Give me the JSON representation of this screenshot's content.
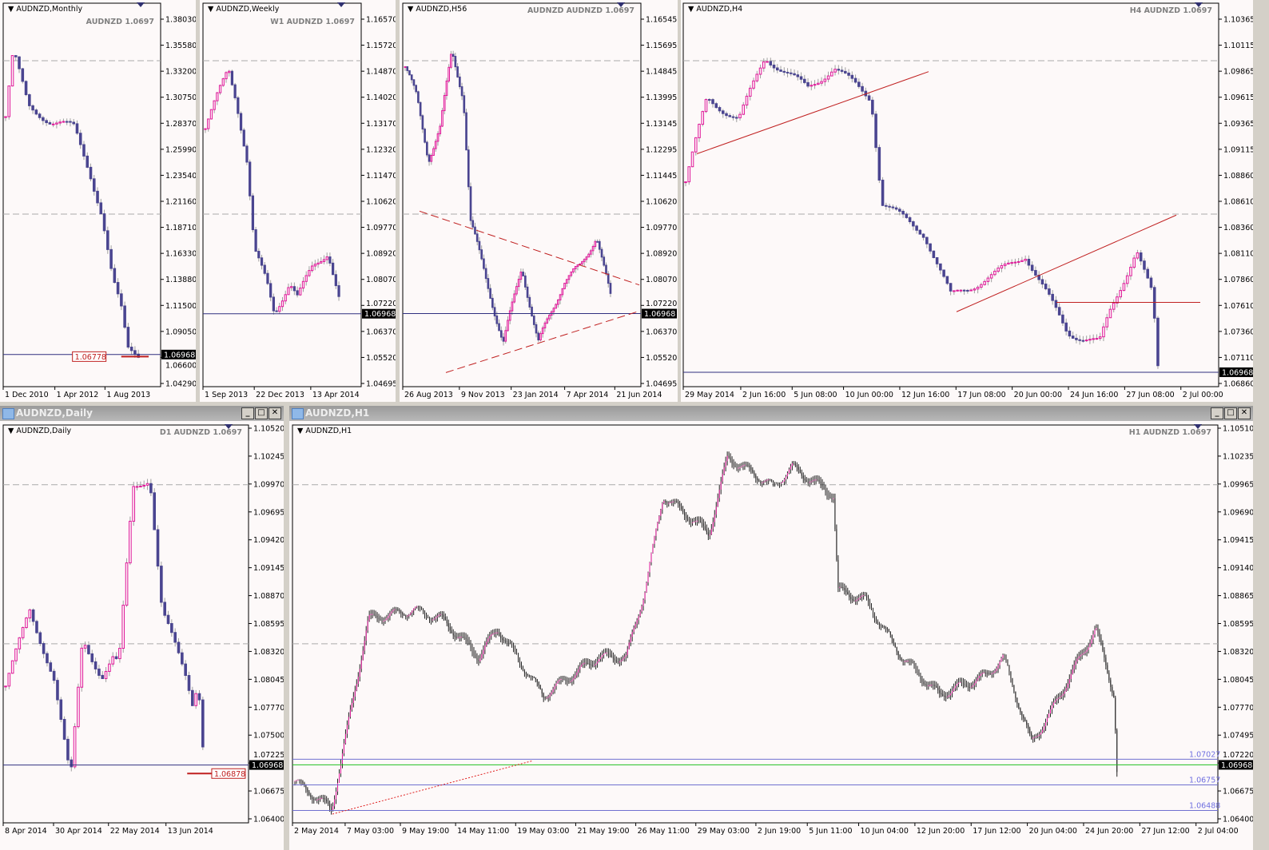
{
  "colors": {
    "bull": "#e0189a",
    "bear": "#4a4590",
    "wick": "#a0a0a0",
    "price_label_bg": "#000000",
    "support": "#c02020",
    "bg": "#fdf9f9"
  },
  "windows": [
    {
      "id": "monthly",
      "title": "AUDNZD,Monthly",
      "overlay": "AUDNZD 1.0697",
      "price": "1.06968",
      "ticks": [
        "1.38030",
        "1.35580",
        "1.33200",
        "1.30750",
        "1.28370",
        "1.25990",
        "1.23540",
        "1.21160",
        "1.18710",
        "1.16330",
        "1.13880",
        "1.11500",
        "1.09050",
        "1.06600",
        "1.04290"
      ],
      "times": [
        "1 Dec 2010",
        "1 Apr 2012",
        "1 Aug 2013"
      ],
      "marker_label": "1.06778"
    },
    {
      "id": "weekly",
      "title": "AUDNZD,Weekly",
      "overlay": "W1 AUDNZD 1.0697",
      "price": "1.06968",
      "ticks": [
        "1.16570",
        "1.15720",
        "1.14870",
        "1.14020",
        "1.13170",
        "1.12320",
        "1.11470",
        "1.10620",
        "1.09770",
        "1.08920",
        "1.08070",
        "1.07220",
        "1.06370",
        "1.05520",
        "1.04695"
      ],
      "times": [
        "1 Sep 2013",
        "22 Dec 2013",
        "13 Apr 2014"
      ]
    },
    {
      "id": "h56",
      "title": "AUDNZD,H56",
      "overlay": "AUDNZD AUDNZD 1.0697",
      "price": "1.06968",
      "ticks": [
        "1.16545",
        "1.15695",
        "1.14845",
        "1.13995",
        "1.13145",
        "1.12295",
        "1.11445",
        "1.10620",
        "1.09770",
        "1.08920",
        "1.08070",
        "1.07220",
        "1.06370",
        "1.05520",
        "1.04695"
      ],
      "times": [
        "26 Aug 2013",
        "9 Nov 2013",
        "23 Jan 2014",
        "7 Apr 2014",
        "21 Jun 2014"
      ]
    },
    {
      "id": "h4",
      "title": "AUDNZD,H4",
      "overlay": "H4 AUDNZD 1.0697",
      "price": "1.06968",
      "ticks": [
        "1.10365",
        "1.10115",
        "1.09865",
        "1.09615",
        "1.09365",
        "1.09115",
        "1.08860",
        "1.08610",
        "1.08360",
        "1.08110",
        "1.07860",
        "1.07610",
        "1.07360",
        "1.07110",
        "1.06860"
      ],
      "times": [
        "29 May 2014",
        "2 Jun 16:00",
        "5 Jun 08:00",
        "10 Jun 00:00",
        "12 Jun 16:00",
        "17 Jun 08:00",
        "20 Jun 00:00",
        "24 Jun 16:00",
        "27 Jun 08:00",
        "2 Jul 00:00"
      ]
    },
    {
      "id": "daily",
      "title": "AUDNZD,Daily",
      "window_title": "AUDNZD,Daily",
      "overlay": "D1 AUDNZD 1.0697",
      "price": "1.06968",
      "ticks": [
        "1.10520",
        "1.10245",
        "1.09970",
        "1.09695",
        "1.09420",
        "1.09145",
        "1.08870",
        "1.08595",
        "1.08320",
        "1.08045",
        "1.07770",
        "1.07500",
        "1.07225",
        "1.06675",
        "1.06400"
      ],
      "times": [
        "8 Apr 2014",
        "30 Apr 2014",
        "22 May 2014",
        "13 Jun 2014"
      ],
      "marker_label": "1.06878"
    },
    {
      "id": "h1",
      "title": "AUDNZD,H1",
      "window_title": "AUDNZD,H1",
      "overlay": "H1 AUDNZD 1.0697",
      "price": "1.06968",
      "ticks": [
        "1.10510",
        "1.10235",
        "1.09965",
        "1.09690",
        "1.09415",
        "1.09140",
        "1.08865",
        "1.08595",
        "1.08320",
        "1.08045",
        "1.07770",
        "1.07495",
        "1.07220",
        "1.06675",
        "1.06400"
      ],
      "times": [
        "2 May 2014",
        "7 May 03:00",
        "9 May 19:00",
        "14 May 11:00",
        "19 May 03:00",
        "21 May 19:00",
        "26 May 11:00",
        "29 May 03:00",
        "2 Jun 19:00",
        "5 Jun 11:00",
        "10 Jun 04:00",
        "12 Jun 20:00",
        "17 Jun 12:00",
        "20 Jun 04:00",
        "24 Jun 20:00",
        "27 Jun 12:00",
        "2 Jul 04:00"
      ],
      "levels": [
        "1.07027",
        "1.06757",
        "1.06488"
      ]
    }
  ],
  "chart_data": [
    {
      "id": "monthly",
      "type": "candlestick",
      "path": [
        [
          0,
          1.29
        ],
        [
          0.05,
          1.35
        ],
        [
          0.15,
          1.3
        ],
        [
          0.3,
          1.285
        ],
        [
          0.45,
          1.28
        ],
        [
          0.55,
          1.24
        ],
        [
          0.63,
          1.2
        ],
        [
          0.7,
          1.14
        ],
        [
          0.76,
          1.11
        ],
        [
          0.8,
          1.075
        ],
        [
          0.87,
          1.07
        ]
      ]
    },
    {
      "id": "weekly",
      "type": "candlestick",
      "path": [
        [
          0,
          1.13
        ],
        [
          0.15,
          1.15
        ],
        [
          0.2,
          1.14
        ],
        [
          0.27,
          1.12
        ],
        [
          0.32,
          1.09
        ],
        [
          0.4,
          1.08
        ],
        [
          0.45,
          1.07
        ],
        [
          0.55,
          1.08
        ],
        [
          0.6,
          1.075
        ],
        [
          0.7,
          1.085
        ],
        [
          0.8,
          1.09
        ],
        [
          0.87,
          1.075
        ]
      ]
    },
    {
      "id": "h56",
      "type": "candlestick",
      "path": [
        [
          0,
          1.15
        ],
        [
          0.05,
          1.14
        ],
        [
          0.1,
          1.12
        ],
        [
          0.15,
          1.13
        ],
        [
          0.2,
          1.155
        ],
        [
          0.25,
          1.14
        ],
        [
          0.28,
          1.1
        ],
        [
          0.35,
          1.08
        ],
        [
          0.42,
          1.06
        ],
        [
          0.5,
          1.085
        ],
        [
          0.57,
          1.06
        ],
        [
          0.68,
          1.08
        ],
        [
          0.75,
          1.085
        ],
        [
          0.82,
          1.095
        ],
        [
          0.88,
          1.075
        ]
      ]
    },
    {
      "id": "h4",
      "type": "candlestick",
      "path": [
        [
          0,
          1.088
        ],
        [
          0.04,
          1.096
        ],
        [
          0.1,
          1.094
        ],
        [
          0.15,
          1.1
        ],
        [
          0.23,
          1.097
        ],
        [
          0.28,
          1.099
        ],
        [
          0.35,
          1.096
        ],
        [
          0.37,
          1.086
        ],
        [
          0.45,
          1.083
        ],
        [
          0.5,
          1.077
        ],
        [
          0.58,
          1.079
        ],
        [
          0.64,
          1.081
        ],
        [
          0.72,
          1.0735
        ],
        [
          0.78,
          1.0725
        ],
        [
          0.8,
          1.0755
        ],
        [
          0.85,
          1.0815
        ],
        [
          0.88,
          1.077
        ],
        [
          0.89,
          1.07
        ]
      ]
    },
    {
      "id": "daily",
      "type": "candlestick",
      "path": [
        [
          0,
          1.078
        ],
        [
          0.1,
          1.086
        ],
        [
          0.2,
          1.079
        ],
        [
          0.27,
          1.068
        ],
        [
          0.32,
          1.083
        ],
        [
          0.4,
          1.079
        ],
        [
          0.45,
          1.081
        ],
        [
          0.47,
          1.08
        ],
        [
          0.53,
          1.099
        ],
        [
          0.6,
          1.1
        ],
        [
          0.65,
          1.086
        ],
        [
          0.75,
          1.079
        ],
        [
          0.78,
          1.076
        ],
        [
          0.8,
          1.079
        ],
        [
          0.82,
          1.072
        ]
      ]
    },
    {
      "id": "h1",
      "type": "candlestick",
      "path": [
        [
          0,
          1.068
        ],
        [
          0.04,
          1.065
        ],
        [
          0.08,
          1.085
        ],
        [
          0.13,
          1.086
        ],
        [
          0.16,
          1.085
        ],
        [
          0.2,
          1.081
        ],
        [
          0.22,
          1.084
        ],
        [
          0.27,
          1.077
        ],
        [
          0.33,
          1.081
        ],
        [
          0.36,
          1.081
        ],
        [
          0.38,
          1.088
        ],
        [
          0.4,
          1.098
        ],
        [
          0.45,
          1.094
        ],
        [
          0.47,
          1.102
        ],
        [
          0.52,
          1.099
        ],
        [
          0.54,
          1.101
        ],
        [
          0.585,
          1.098
        ],
        [
          0.59,
          1.088
        ],
        [
          0.62,
          1.087
        ],
        [
          0.66,
          1.081
        ],
        [
          0.7,
          1.077
        ],
        [
          0.75,
          1.079
        ],
        [
          0.77,
          1.081
        ],
        [
          0.8,
          1.072
        ],
        [
          0.82,
          1.075
        ],
        [
          0.87,
          1.084
        ],
        [
          0.89,
          1.077
        ],
        [
          0.893,
          1.069
        ]
      ]
    }
  ]
}
